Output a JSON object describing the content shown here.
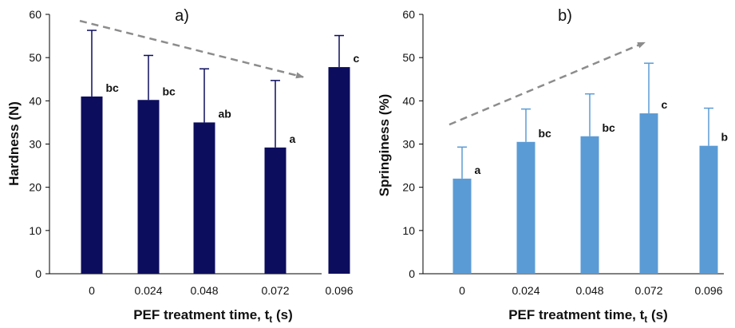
{
  "chart_data": [
    {
      "type": "bar",
      "panel_label": "a)",
      "xlabel": "PEF treatment time, t",
      "xlabel_sub": "t",
      "xlabel_suffix": " (s)",
      "ylabel": "Hardness (N)",
      "ylim": [
        0,
        60
      ],
      "yticks": [
        0,
        10,
        20,
        30,
        40,
        50,
        60
      ],
      "categories": [
        "0",
        "0.024",
        "0.048",
        "0.072",
        "0.096"
      ],
      "values": [
        41,
        40.2,
        35,
        29.2,
        47.8
      ],
      "error_upper": [
        15.3,
        10.3,
        12.4,
        15.5,
        7.3
      ],
      "significance_letters": [
        "bc",
        "bc",
        "ab",
        "a",
        "c"
      ],
      "bar_color": "#0d0d5e",
      "grid": false,
      "trend_arrow": {
        "direction": "decreasing",
        "color": "#8c8c8c",
        "style": "dashed"
      }
    },
    {
      "type": "bar",
      "panel_label": "b)",
      "xlabel": "PEF treatment time, t",
      "xlabel_sub": "t",
      "xlabel_suffix": " (s)",
      "ylabel": "Springiness (%)",
      "ylim": [
        0,
        60
      ],
      "yticks": [
        0,
        10,
        20,
        30,
        40,
        50,
        60
      ],
      "categories": [
        "0",
        "0.024",
        "0.048",
        "0.072",
        "0.096"
      ],
      "values": [
        22,
        30.5,
        31.8,
        37.1,
        29.6
      ],
      "error_upper": [
        7.3,
        7.6,
        9.8,
        11.6,
        8.7
      ],
      "significance_letters": [
        "a",
        "bc",
        "bc",
        "c",
        "b"
      ],
      "bar_color": "#5b9bd5",
      "grid": false,
      "trend_arrow": {
        "direction": "increasing",
        "color": "#8c8c8c",
        "style": "dashed"
      }
    }
  ]
}
